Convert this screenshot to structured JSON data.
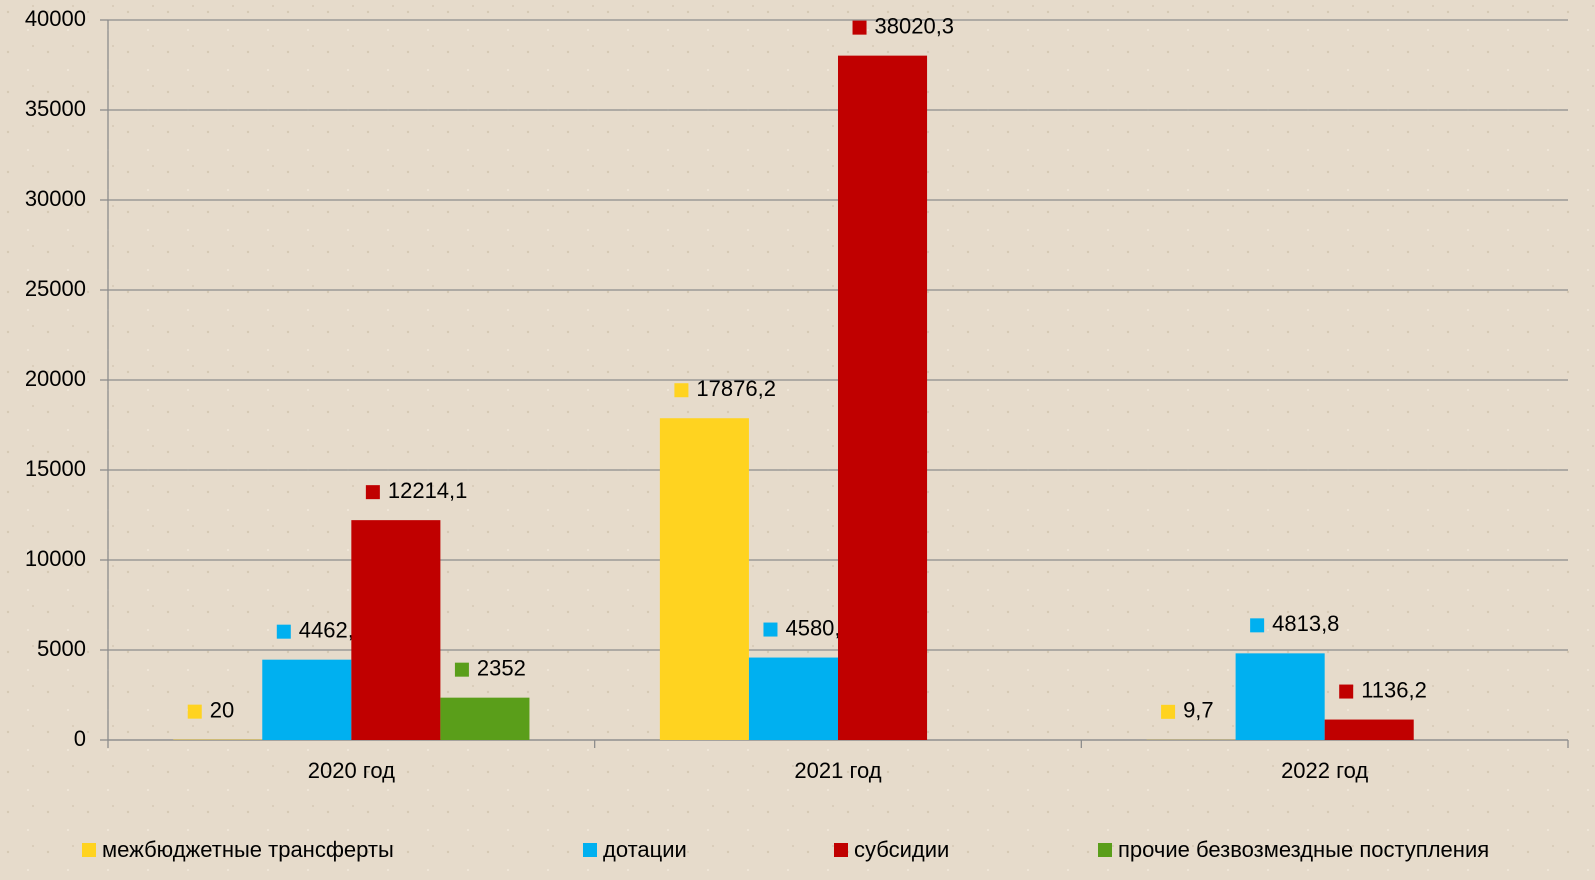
{
  "chart_data": {
    "type": "bar",
    "categories": [
      "2020 год",
      "2021 год",
      "2022 год"
    ],
    "series": [
      {
        "name": "межбюджетные трансферты",
        "color": "#FFD320",
        "values": [
          20,
          17876.2,
          9.7
        ],
        "value_labels": [
          "20",
          "17876,2",
          "9,7"
        ]
      },
      {
        "name": "дотации",
        "color": "#00B0F0",
        "values": [
          4462.6,
          4580.8,
          4813.8
        ],
        "value_labels": [
          "4462,6",
          "4580,8",
          "4813,8"
        ]
      },
      {
        "name": "субсидии",
        "color": "#C00000",
        "values": [
          12214.1,
          38020.3,
          1136.2
        ],
        "value_labels": [
          "12214,1",
          "38020,3",
          "1136,2"
        ]
      },
      {
        "name": "прочие безвозмездные поступления",
        "color": "#5A9E1A",
        "values": [
          2352,
          null,
          null
        ],
        "value_labels": [
          "2352",
          null,
          null
        ]
      }
    ],
    "ylim": [
      0,
      40000
    ],
    "yticks": [
      0,
      5000,
      10000,
      15000,
      20000,
      25000,
      30000,
      35000,
      40000
    ],
    "grid": true,
    "legend": "bottom"
  }
}
